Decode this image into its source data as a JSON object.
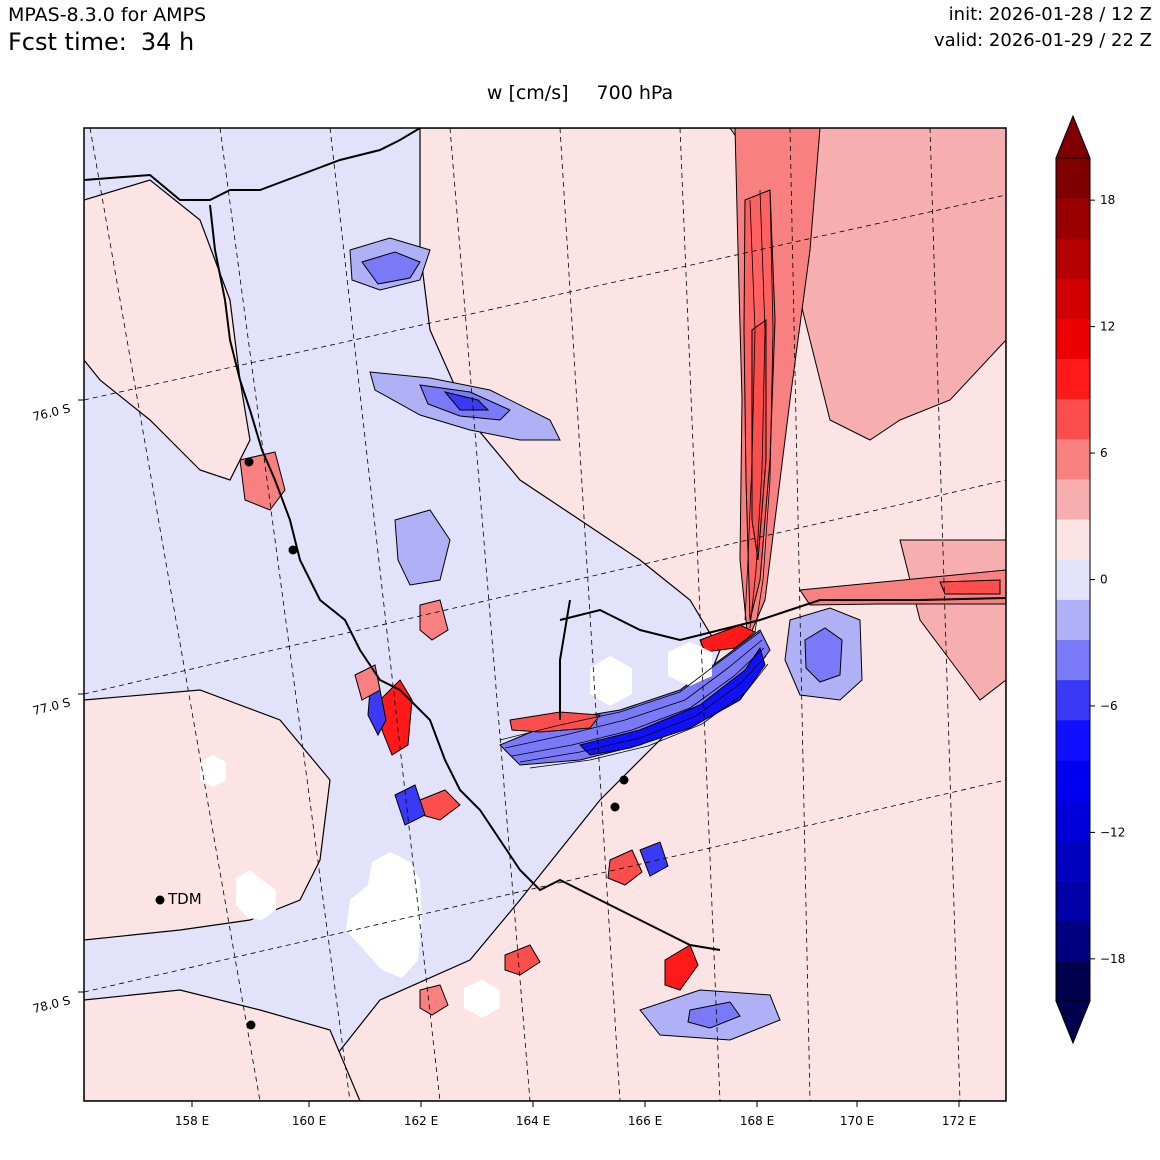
{
  "header": {
    "model": "MPAS-8.3.0 for AMPS",
    "fcst_label": "Fcst time:",
    "fcst_value": "34 h",
    "init": "init: 2026-01-28 / 12 Z",
    "valid": "valid: 2026-01-29 / 22 Z"
  },
  "title": {
    "variable": "w [cm/s]",
    "level": "700 hPa"
  },
  "map": {
    "lon_labels": [
      "158 E",
      "160 E",
      "162 E",
      "164 E",
      "166 E",
      "168 E",
      "170 E",
      "172 E"
    ],
    "lat_labels": [
      "76.0 S",
      "77.0 S",
      "78.0 S"
    ],
    "station_label": "TDM",
    "colors": {
      "background_negative": "#e2e2fa",
      "background_positive": "#fde4e4",
      "strong_positive": "#ff6060",
      "strong_negative": "#4040f0"
    }
  },
  "colorbar": {
    "tick_labels": [
      "18",
      "12",
      "6",
      "0",
      "−6",
      "−12",
      "−18"
    ],
    "levels": [
      -20,
      -18,
      -16,
      -14,
      -12,
      -10,
      -8,
      -6,
      -4,
      -2,
      0,
      2,
      4,
      6,
      8,
      10,
      12,
      14,
      16,
      18,
      20
    ],
    "colors": [
      "#00004c",
      "#000080",
      "#0000a6",
      "#0000c0",
      "#0000da",
      "#0000f0",
      "#1010ff",
      "#3a3af6",
      "#7a7af8",
      "#b0b0f6",
      "#e2e2fa",
      "#fde4e4",
      "#f7aeae",
      "#f88080",
      "#fd4e4e",
      "#ff1a1a",
      "#ec0000",
      "#d20000",
      "#b40000",
      "#980000",
      "#7e0000"
    ],
    "extend_low_color": "#00004c",
    "extend_high_color": "#7e0000"
  }
}
